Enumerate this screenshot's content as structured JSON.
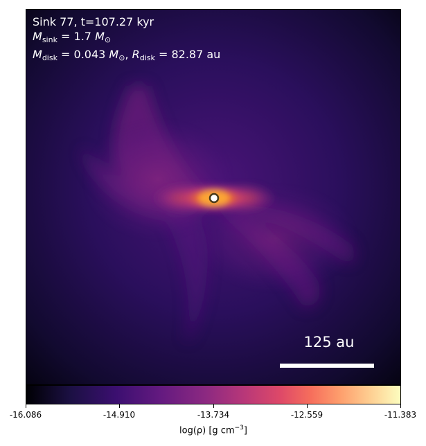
{
  "annotation": {
    "sink_line": "Sink 77, t=107.27 kyr",
    "msink_symbol": "M",
    "msink_sub": "sink",
    "msink_value": " = 1.7 ",
    "msun_symbol": "M",
    "msun_sub": "⊙",
    "mdisk_symbol": "M",
    "mdisk_sub": "disk",
    "mdisk_value": " = 0.043 ",
    "mdisk_sun_symbol": "M",
    "mdisk_sun_sub": "⊙",
    "rdisk_sep": ", ",
    "rdisk_symbol": "R",
    "rdisk_sub": "disk",
    "rdisk_value": " = 82.87 au"
  },
  "scale_bar": {
    "label": "125 au"
  },
  "colorbar": {
    "colormap": "plasma/magma",
    "ticks": [
      "-16.086",
      "-14.910",
      "-13.734",
      "-12.559",
      "-11.383"
    ],
    "label_prefix": "log(ρ) [g cm",
    "label_exp": "−3",
    "label_suffix": "]"
  },
  "colors": {
    "sink_marker_fill": "#ffffff",
    "sink_marker_ring": "#4a3a1a"
  }
}
